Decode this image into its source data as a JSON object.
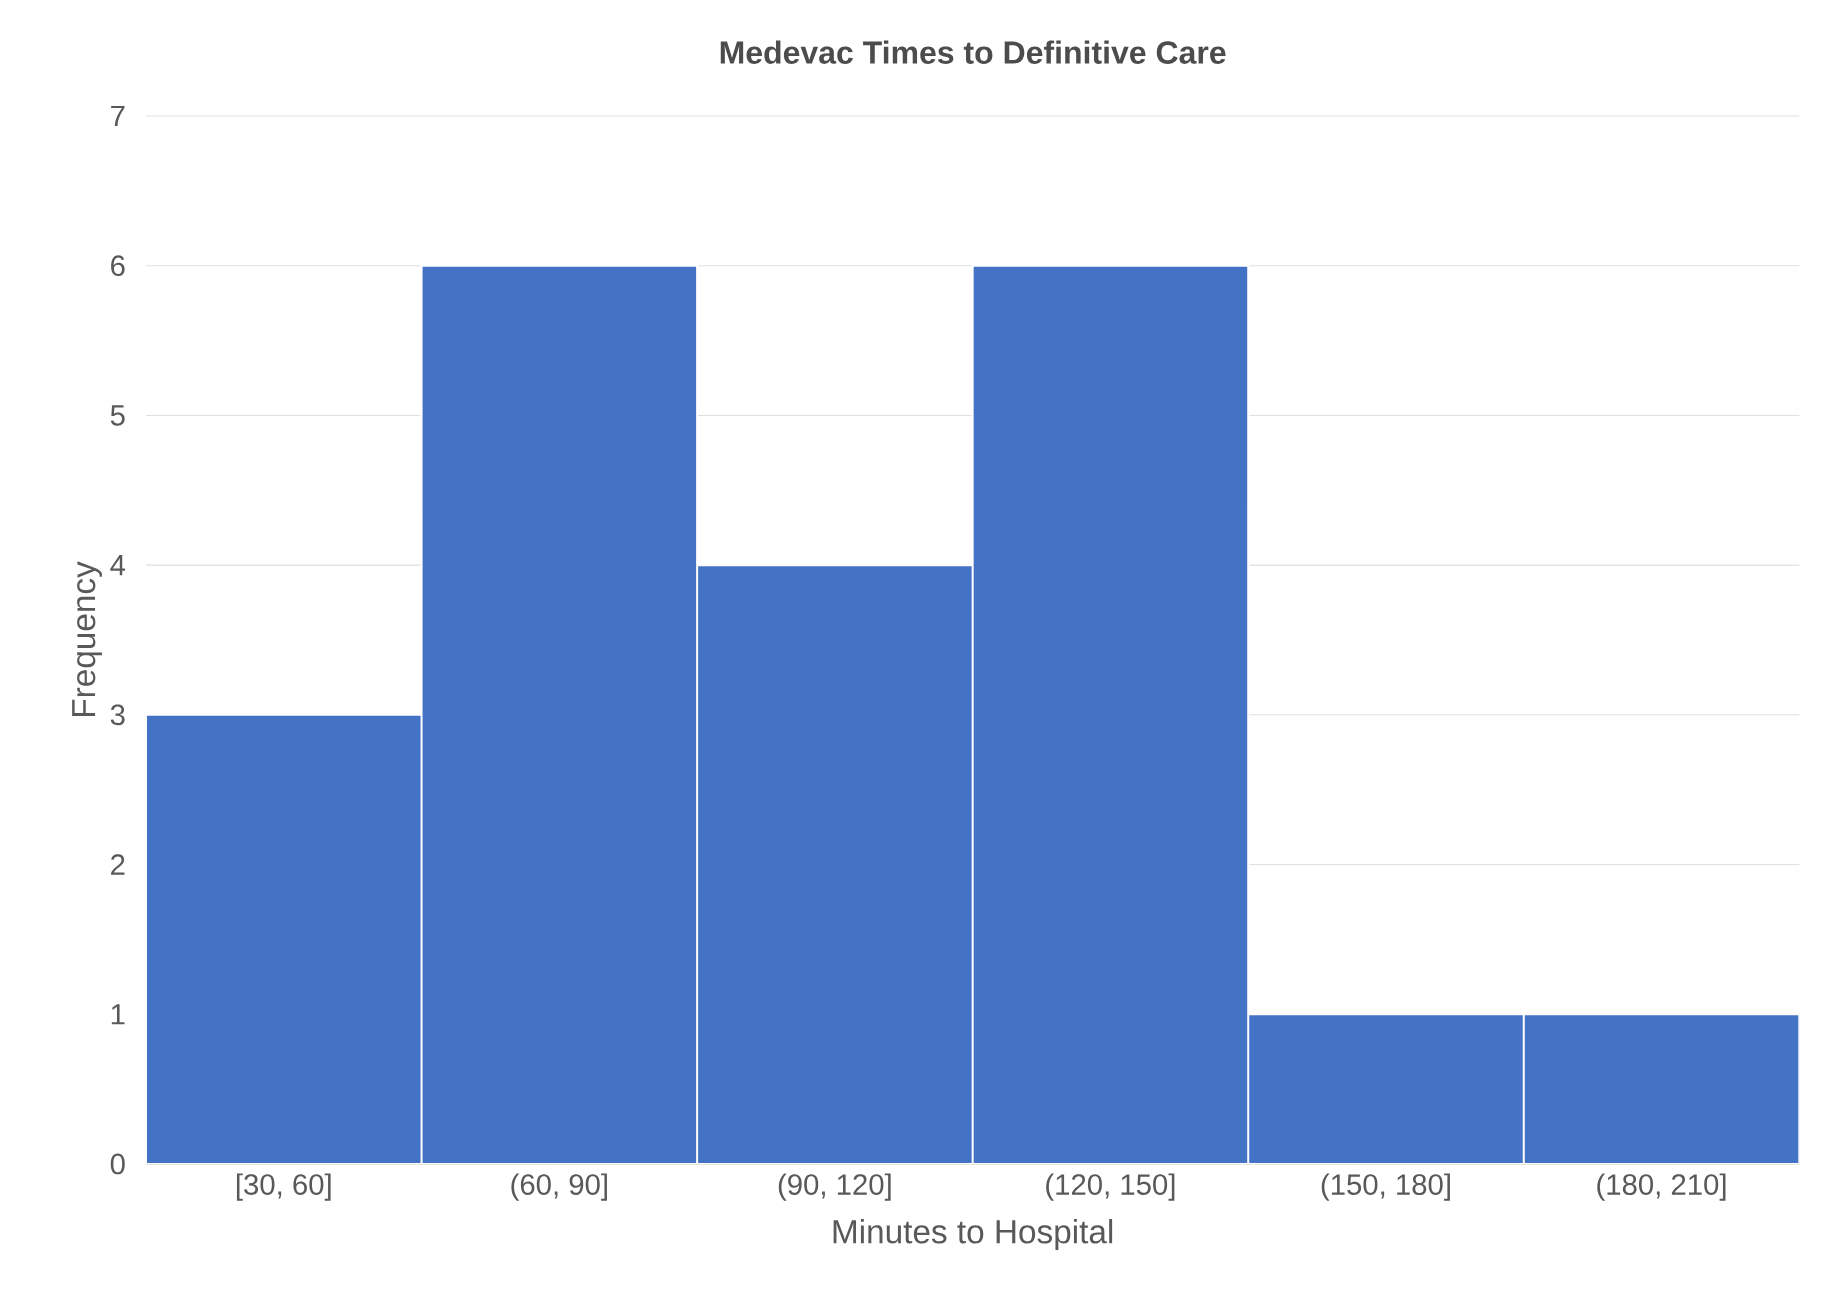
{
  "chart_data": {
    "type": "bar",
    "title": "Medevac Times to Definitive Care",
    "xlabel": "Minutes to Hospital",
    "ylabel": "Frequency",
    "categories": [
      "[30, 60]",
      "(60, 90]",
      "(90, 120]",
      "(120, 150]",
      "(150, 180]",
      "(180, 210]"
    ],
    "values": [
      3,
      6,
      4,
      6,
      1,
      1
    ],
    "color": "#4472c4",
    "ylim": [
      0,
      7
    ],
    "yticks": [
      0,
      1,
      2,
      3,
      4,
      5,
      6,
      7
    ],
    "grid": "y"
  }
}
